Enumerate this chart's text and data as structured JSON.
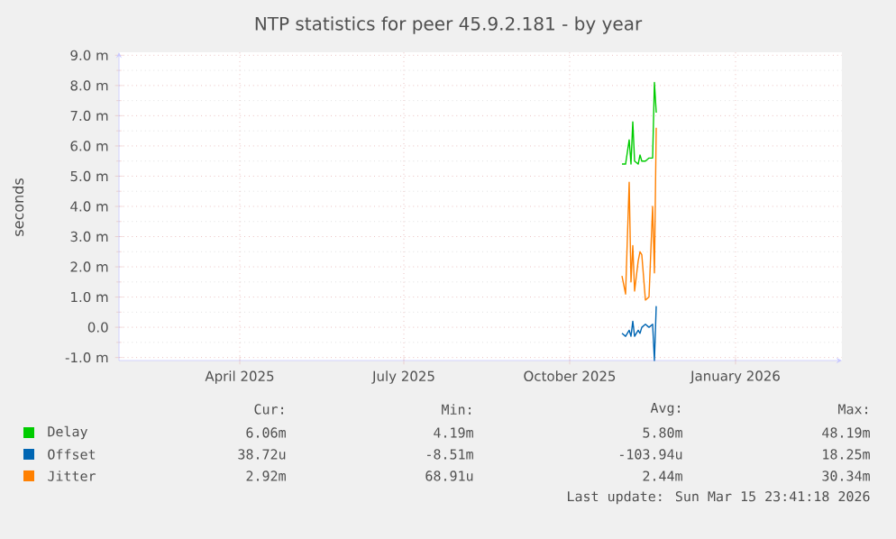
{
  "chart_data": {
    "type": "line",
    "title": "NTP statistics for peer 45.9.2.181 - by year",
    "ylabel": "seconds",
    "x": [
      "2025-10-30",
      "2025-11-01",
      "2025-11-03",
      "2025-11-04",
      "2025-11-05",
      "2025-11-06",
      "2025-11-08",
      "2025-11-09",
      "2025-11-10",
      "2025-11-12",
      "2025-11-14",
      "2025-11-16",
      "2025-11-17",
      "2025-11-18"
    ],
    "series": [
      {
        "name": "Delay",
        "color": "#00cc00",
        "values": [
          5.4,
          5.4,
          6.2,
          5.4,
          6.8,
          5.5,
          5.4,
          5.7,
          5.5,
          5.5,
          5.6,
          5.6,
          8.1,
          7.1
        ]
      },
      {
        "name": "Offset",
        "color": "#0066b3",
        "values": [
          -0.2,
          -0.3,
          -0.1,
          -0.3,
          0.2,
          -0.3,
          -0.1,
          -0.2,
          0.0,
          0.1,
          0.0,
          0.1,
          -1.1,
          0.7
        ]
      },
      {
        "name": "Jitter",
        "color": "#ff8000",
        "values": [
          1.7,
          1.1,
          4.8,
          1.5,
          2.7,
          1.2,
          2.2,
          2.5,
          2.4,
          0.9,
          1.0,
          4.0,
          1.8,
          6.6
        ]
      }
    ],
    "xlim": [
      "2025-01-24",
      "2026-03-01"
    ],
    "xticks": [
      {
        "value": "2025-04-01",
        "label": "April 2025"
      },
      {
        "value": "2025-07-01",
        "label": "July 2025"
      },
      {
        "value": "2025-10-01",
        "label": "October 2025"
      },
      {
        "value": "2026-01-01",
        "label": "January 2026"
      }
    ],
    "ylim": [
      -1.1,
      9.1
    ],
    "yticks": [
      {
        "value": -1,
        "label": "-1.0 m"
      },
      {
        "value": 0,
        "label": "0.0"
      },
      {
        "value": 1,
        "label": "1.0 m"
      },
      {
        "value": 2,
        "label": "2.0 m"
      },
      {
        "value": 3,
        "label": "3.0 m"
      },
      {
        "value": 4,
        "label": "4.0 m"
      },
      {
        "value": 5,
        "label": "5.0 m"
      },
      {
        "value": 6,
        "label": "6.0 m"
      },
      {
        "value": 7,
        "label": "7.0 m"
      },
      {
        "value": 8,
        "label": "8.0 m"
      },
      {
        "value": 9,
        "label": "9.0 m"
      }
    ],
    "grid": true,
    "legend": "bottom",
    "marker": "none",
    "line_style": "solid",
    "annotations": [
      "Cur:",
      "Min:",
      "Avg:",
      "Max:",
      "6.06m",
      "4.19m",
      "5.80m",
      "48.19m",
      "38.72u",
      "-8.51m",
      "-103.94u",
      "18.25m",
      "2.92m",
      "68.91u",
      "2.44m",
      "30.34m",
      "Last update: Sun Mar 15 23:41:18 2026"
    ]
  }
}
